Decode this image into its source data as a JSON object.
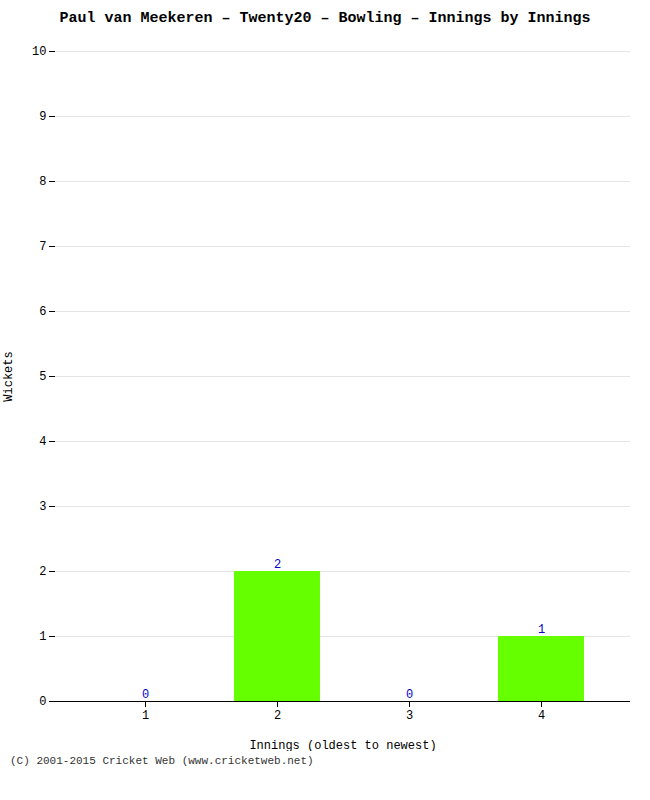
{
  "chart_data": {
    "type": "bar",
    "title": "Paul van Meekeren – Twenty20 – Bowling – Innings by Innings",
    "xlabel": "Innings (oldest to newest)",
    "ylabel": "Wickets",
    "categories": [
      "1",
      "2",
      "3",
      "4"
    ],
    "values": [
      0,
      2,
      0,
      1
    ],
    "color": "#66ff00",
    "data_labels": true,
    "ylim": [
      0,
      10
    ],
    "yticks": [
      0,
      1,
      2,
      3,
      4,
      5,
      6,
      7,
      8,
      9,
      10
    ],
    "grid": true,
    "caption": "(C) 2001-2015 Cricket Web (www.cricketweb.net)"
  }
}
